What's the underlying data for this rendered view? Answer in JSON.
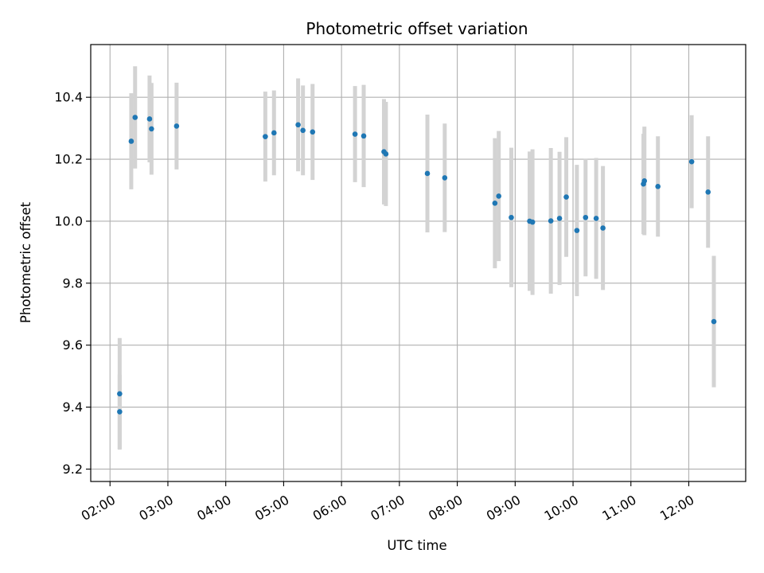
{
  "chart_data": {
    "type": "scatter",
    "title": "Photometric offset variation",
    "xlabel": "UTC time",
    "ylabel": "Photometric offset",
    "xlim": [
      "01:40",
      "12:59"
    ],
    "ylim": [
      9.16,
      10.57
    ],
    "xticks": [
      "02:00",
      "03:00",
      "04:00",
      "05:00",
      "06:00",
      "07:00",
      "08:00",
      "09:00",
      "10:00",
      "11:00",
      "12:00"
    ],
    "yticks": [
      "9.2",
      "9.4",
      "9.6",
      "9.8",
      "10.0",
      "10.2",
      "10.4"
    ],
    "grid": true,
    "colors": {
      "point": "#1f77b4",
      "errorbar": "#d3d3d3",
      "grid": "#b0b0b0"
    },
    "series": [
      {
        "points": [
          {
            "x": "02:10",
            "y": 9.385,
            "err": 0.12
          },
          {
            "x": "02:10",
            "y": 9.443,
            "err": 0.18
          },
          {
            "x": "02:22",
            "y": 10.258,
            "err": 0.155
          },
          {
            "x": "02:26",
            "y": 10.335,
            "err": 0.165
          },
          {
            "x": "02:41",
            "y": 10.33,
            "err": 0.14
          },
          {
            "x": "02:43",
            "y": 10.298,
            "err": 0.148
          },
          {
            "x": "03:09",
            "y": 10.307,
            "err": 0.14
          },
          {
            "x": "04:41",
            "y": 10.273,
            "err": 0.145
          },
          {
            "x": "04:50",
            "y": 10.285,
            "err": 0.137
          },
          {
            "x": "05:15",
            "y": 10.311,
            "err": 0.15
          },
          {
            "x": "05:20",
            "y": 10.293,
            "err": 0.145
          },
          {
            "x": "05:30",
            "y": 10.288,
            "err": 0.155
          },
          {
            "x": "06:14",
            "y": 10.281,
            "err": 0.155
          },
          {
            "x": "06:23",
            "y": 10.275,
            "err": 0.165
          },
          {
            "x": "06:44",
            "y": 10.224,
            "err": 0.17
          },
          {
            "x": "06:46",
            "y": 10.217,
            "err": 0.168
          },
          {
            "x": "07:29",
            "y": 10.154,
            "err": 0.19
          },
          {
            "x": "07:47",
            "y": 10.14,
            "err": 0.175
          },
          {
            "x": "08:39",
            "y": 10.058,
            "err": 0.21
          },
          {
            "x": "08:43",
            "y": 10.081,
            "err": 0.21
          },
          {
            "x": "08:56",
            "y": 10.012,
            "err": 0.225
          },
          {
            "x": "09:15",
            "y": 10.0,
            "err": 0.225
          },
          {
            "x": "09:18",
            "y": 9.997,
            "err": 0.235
          },
          {
            "x": "09:37",
            "y": 10.001,
            "err": 0.235
          },
          {
            "x": "09:46",
            "y": 10.009,
            "err": 0.215
          },
          {
            "x": "09:53",
            "y": 10.078,
            "err": 0.193
          },
          {
            "x": "10:04",
            "y": 9.97,
            "err": 0.212
          },
          {
            "x": "10:13",
            "y": 10.012,
            "err": 0.19
          },
          {
            "x": "10:24",
            "y": 10.009,
            "err": 0.195
          },
          {
            "x": "10:31",
            "y": 9.978,
            "err": 0.2
          },
          {
            "x": "11:13",
            "y": 10.12,
            "err": 0.162
          },
          {
            "x": "11:14",
            "y": 10.13,
            "err": 0.175
          },
          {
            "x": "11:28",
            "y": 10.112,
            "err": 0.162
          },
          {
            "x": "12:03",
            "y": 10.192,
            "err": 0.15
          },
          {
            "x": "12:20",
            "y": 10.094,
            "err": 0.18
          },
          {
            "x": "12:26",
            "y": 9.676,
            "err": 0.212
          }
        ]
      }
    ]
  }
}
